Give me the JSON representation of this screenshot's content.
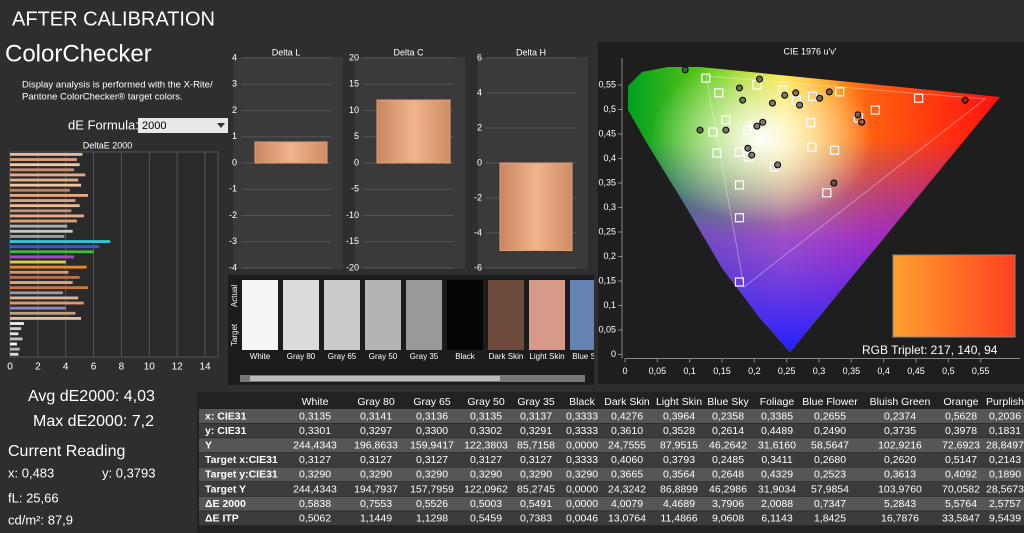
{
  "header": {
    "title": "AFTER CALIBRATION",
    "app": "ColorChecker",
    "description": [
      "Display analysis is performed with the X-Rite/",
      "Pantone ColorChecker® target colors."
    ],
    "formula_label": "dE Formula:",
    "formula": "2000"
  },
  "chart_data": [
    {
      "type": "bar",
      "orientation": "horizontal",
      "title": "DeltaE 2000",
      "values": [
        5.2,
        4.8,
        5.0,
        4.6,
        5.4,
        4.9,
        5.1,
        4.3,
        5.6,
        4.7,
        5.0,
        4.4,
        5.3,
        4.8,
        4.1,
        4.5,
        3.9,
        7.2,
        6.4,
        6.0,
        4.6,
        4.0,
        5.5,
        4.2,
        5.0,
        4.5,
        5.6,
        3.8,
        4.9,
        5.3,
        4.0,
        4.7,
        5.1,
        1.0,
        0.8,
        0.6,
        0.9,
        0.5,
        0.7,
        0.6
      ],
      "colors": [
        "#e8b898",
        "#d9a07c",
        "#f0c8a8",
        "#c98c6c",
        "#e6ab88",
        "#ddb090",
        "#f2c4a4",
        "#c08060",
        "#e8a882",
        "#d6a486",
        "#f0bc98",
        "#c49070",
        "#e4ae8c",
        "#d8a080",
        "#b0b0b0",
        "#c8c8c8",
        "#a0a0a0",
        "#30c8d8",
        "#3858e8",
        "#40b848",
        "#a848c8",
        "#e0d040",
        "#e88830",
        "#d09878",
        "#b87050",
        "#e0a888",
        "#c87848",
        "#9898a8",
        "#d8b898",
        "#e09870",
        "#8888c0",
        "#c0a080",
        "#e8c0a0",
        "#f0f0f0",
        "#d0d0d0",
        "#e8e8e8",
        "#c0c0c0",
        "#f8f8f8",
        "#b8b8b8",
        "#dddddd"
      ],
      "xlim": [
        0,
        14
      ],
      "xticks": [
        0,
        2,
        4,
        6,
        8,
        10,
        12,
        14
      ],
      "grid": true
    },
    {
      "type": "bar",
      "title": "Delta L",
      "values": [
        0.8
      ],
      "color": "#e3a07a",
      "ylim": [
        -4,
        4
      ],
      "yticks": [
        4,
        3,
        2,
        1,
        0,
        -1,
        -2,
        -3,
        -4
      ],
      "grid": true
    },
    {
      "type": "bar",
      "title": "Delta C",
      "values": [
        12
      ],
      "color": "#e3a07a",
      "ylim": [
        -20,
        20
      ],
      "yticks": [
        20,
        15,
        10,
        5,
        0,
        -5,
        -10,
        -15,
        -20
      ],
      "grid": true
    },
    {
      "type": "bar",
      "title": "Delta H",
      "values": [
        -5
      ],
      "color": "#e3a07a",
      "ylim": [
        -6,
        6
      ],
      "yticks": [
        6,
        4,
        2,
        0,
        -2,
        -4,
        -6
      ],
      "grid": true
    },
    {
      "type": "scatter",
      "title": "CIE 1976 u'v'",
      "xlim": [
        0,
        0.6
      ],
      "ylim": [
        0,
        0.6
      ],
      "xticks": [
        0,
        {
          "value": 0.05,
          "label": "0,05"
        },
        {
          "value": 0.1,
          "label": "0,1"
        },
        {
          "value": 0.15,
          "label": "0,15"
        },
        {
          "value": 0.2,
          "label": "0,2"
        },
        {
          "value": 0.25,
          "label": "0,25"
        },
        {
          "value": 0.3,
          "label": "0,3"
        },
        {
          "value": 0.35,
          "label": "0,35"
        },
        {
          "value": 0.4,
          "label": "0,4"
        },
        {
          "value": 0.45,
          "label": "0,45"
        },
        {
          "value": 0.5,
          "label": "0,5"
        },
        {
          "value": 0.55,
          "label": "0,55"
        }
      ],
      "yticks": [
        0,
        {
          "value": 0.05,
          "label": "0,05"
        },
        {
          "value": 0.1,
          "label": "0,1"
        },
        {
          "value": 0.15,
          "label": "0,15"
        },
        {
          "value": 0.2,
          "label": "0,2"
        },
        {
          "value": 0.25,
          "label": "0,25"
        },
        {
          "value": 0.3,
          "label": "0,3"
        },
        {
          "value": 0.35,
          "label": "0,35"
        },
        {
          "value": 0.4,
          "label": "0,4"
        },
        {
          "value": 0.45,
          "label": "0,45"
        },
        {
          "value": 0.5,
          "label": "0,5"
        },
        {
          "value": 0.55,
          "label": "0,55"
        }
      ],
      "series": [
        {
          "marker": "square",
          "color": "#ffffff",
          "x": [
            0.125,
            0.204,
            0.145,
            0.244,
            0.265,
            0.29,
            0.332,
            0.454,
            0.387,
            0.361,
            0.287,
            0.156,
            0.136,
            0.19,
            0.142,
            0.177,
            0.191,
            0.289,
            0.324,
            0.231,
            0.312,
            0.177,
            0.177,
            0.177,
            0.199
          ],
          "values": [
            0.564,
            0.55,
            0.534,
            0.54,
            0.519,
            0.527,
            0.536,
            0.523,
            0.499,
            0.483,
            0.473,
            0.479,
            0.454,
            0.458,
            0.411,
            0.413,
            0.403,
            0.423,
            0.417,
            0.383,
            0.33,
            0.346,
            0.279,
            0.148,
            0.466
          ]
        },
        {
          "marker": "circle",
          "color": "#2a2a2a",
          "x": [
            0.093,
            0.177,
            0.208,
            0.182,
            0.247,
            0.27,
            0.301,
            0.316,
            0.264,
            0.36,
            0.366,
            0.204,
            0.213,
            0.116,
            0.156,
            0.19,
            0.196,
            0.236,
            0.323,
            0.526,
            0.228
          ],
          "values": [
            0.581,
            0.544,
            0.562,
            0.519,
            0.529,
            0.509,
            0.523,
            0.536,
            0.534,
            0.489,
            0.474,
            0.466,
            0.474,
            0.458,
            0.458,
            0.421,
            0.407,
            0.387,
            0.35,
            0.519,
            0.513
          ]
        }
      ]
    }
  ],
  "swatches": {
    "actual_label": "Actual",
    "target_label": "Target",
    "items": [
      {
        "name": "White",
        "color": "#f5f5f5"
      },
      {
        "name": "Gray 80",
        "color": "#dcdcdc"
      },
      {
        "name": "Gray 65",
        "color": "#cbcbcb"
      },
      {
        "name": "Gray 50",
        "color": "#b4b4b4"
      },
      {
        "name": "Gray 35",
        "color": "#999999"
      },
      {
        "name": "Black",
        "color": "#050505"
      },
      {
        "name": "Dark Skin",
        "color": "#6e4a3c"
      },
      {
        "name": "Light Skin",
        "color": "#d89a88"
      },
      {
        "name": "Blue Sky",
        "color": "#6482b2"
      }
    ]
  },
  "stats": {
    "avg": "Avg dE2000: 4,03",
    "max": "Max dE2000: 7,2",
    "current_title": "Current Reading",
    "x": "x: 0,483",
    "y": "y: 0,3793",
    "fl": "fL: 25,66",
    "cd": "cd/m²: 87,9"
  },
  "inset": {
    "label": "RGB Triplet: 217, 140, 94"
  },
  "table": {
    "columns": [
      "White",
      "Gray 80",
      "Gray 65",
      "Gray 50",
      "Gray 35",
      "Black",
      "Dark Skin",
      "Light Skin",
      "Blue Sky",
      "Foliage",
      "Blue Flower",
      "Bluish Green",
      "Orange",
      "Purplish"
    ],
    "rows": [
      {
        "label": "x: CIE31",
        "cells": [
          "0,3135",
          "0,3141",
          "0,3136",
          "0,3135",
          "0,3137",
          "0,3333",
          "0,4276",
          "0,3964",
          "0,2358",
          "0,3385",
          "0,2655",
          "0,2374",
          "0,5628",
          "0,2036"
        ]
      },
      {
        "label": "y: CIE31",
        "cells": [
          "0,3301",
          "0,3297",
          "0,3300",
          "0,3302",
          "0,3291",
          "0,3333",
          "0,3610",
          "0,3528",
          "0,2614",
          "0,4489",
          "0,2490",
          "0,3735",
          "0,3978",
          "0,1831"
        ]
      },
      {
        "label": "Y",
        "cells": [
          "244,4343",
          "196,8633",
          "159,9417",
          "122,3803",
          "85,7158",
          "0,0000",
          "24,7555",
          "87,9515",
          "46,2642",
          "31,6160",
          "58,5647",
          "102,9216",
          "72,6923",
          "28,8497"
        ]
      },
      {
        "label": "Target x:CIE31",
        "cells": [
          "0,3127",
          "0,3127",
          "0,3127",
          "0,3127",
          "0,3127",
          "0,3333",
          "0,4060",
          "0,3793",
          "0,2485",
          "0,3411",
          "0,2680",
          "0,2620",
          "0,5147",
          "0,2143"
        ]
      },
      {
        "label": "Target y:CIE31",
        "cells": [
          "0,3290",
          "0,3290",
          "0,3290",
          "0,3290",
          "0,3290",
          "0,3290",
          "0,3665",
          "0,3564",
          "0,2648",
          "0,4329",
          "0,2523",
          "0,3613",
          "0,4092",
          "0,1890"
        ]
      },
      {
        "label": "Target Y",
        "cells": [
          "244,4343",
          "194,7937",
          "157,7959",
          "122,0962",
          "85,2745",
          "0,0000",
          "24,3242",
          "86,8899",
          "46,2986",
          "31,9034",
          "57,9854",
          "103,9760",
          "70,0582",
          "28,5673"
        ]
      },
      {
        "label": "ΔE 2000",
        "cells": [
          "0,5838",
          "0,7553",
          "0,5526",
          "0,5003",
          "0,5491",
          "0,0000",
          "4,0079",
          "4,4689",
          "3,7906",
          "2,0088",
          "0,7347",
          "5,2843",
          "5,5764",
          "2,5757"
        ]
      },
      {
        "label": "ΔE ITP",
        "cells": [
          "0,5062",
          "1,1449",
          "1,1298",
          "0,5459",
          "0,7383",
          "0,0046",
          "13,0764",
          "11,4866",
          "9,0608",
          "6,1143",
          "1,8425",
          "16,7876",
          "33,5847",
          "9,5439"
        ]
      }
    ]
  }
}
